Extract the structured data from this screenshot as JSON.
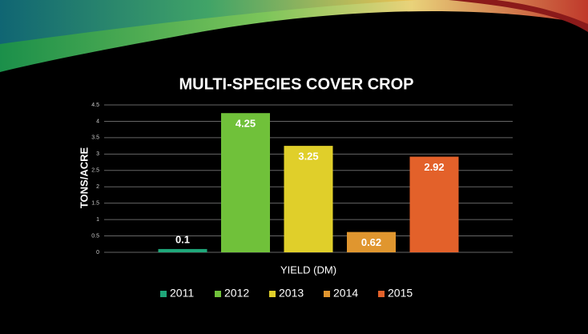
{
  "chart_data": {
    "type": "bar",
    "title": "MULTI-SPECIES COVER CROP",
    "y_label": "TONS/ACRE",
    "categories": [
      "YIELD (DM)"
    ],
    "series": [
      {
        "name": "2011",
        "color": "#1fa77a",
        "values": [
          0.1
        ]
      },
      {
        "name": "2012",
        "color": "#70c13a",
        "values": [
          4.25
        ]
      },
      {
        "name": "2013",
        "color": "#e0cf2a",
        "values": [
          3.25
        ]
      },
      {
        "name": "2014",
        "color": "#e0962f",
        "values": [
          0.62
        ]
      },
      {
        "name": "2015",
        "color": "#e3612a",
        "values": [
          2.92
        ]
      }
    ],
    "ylim": [
      0,
      4.5
    ],
    "yticks": [
      0,
      0.5,
      1,
      1.5,
      2,
      2.5,
      3,
      3.5,
      4,
      4.5
    ],
    "grid": true,
    "legend": "bottom"
  }
}
